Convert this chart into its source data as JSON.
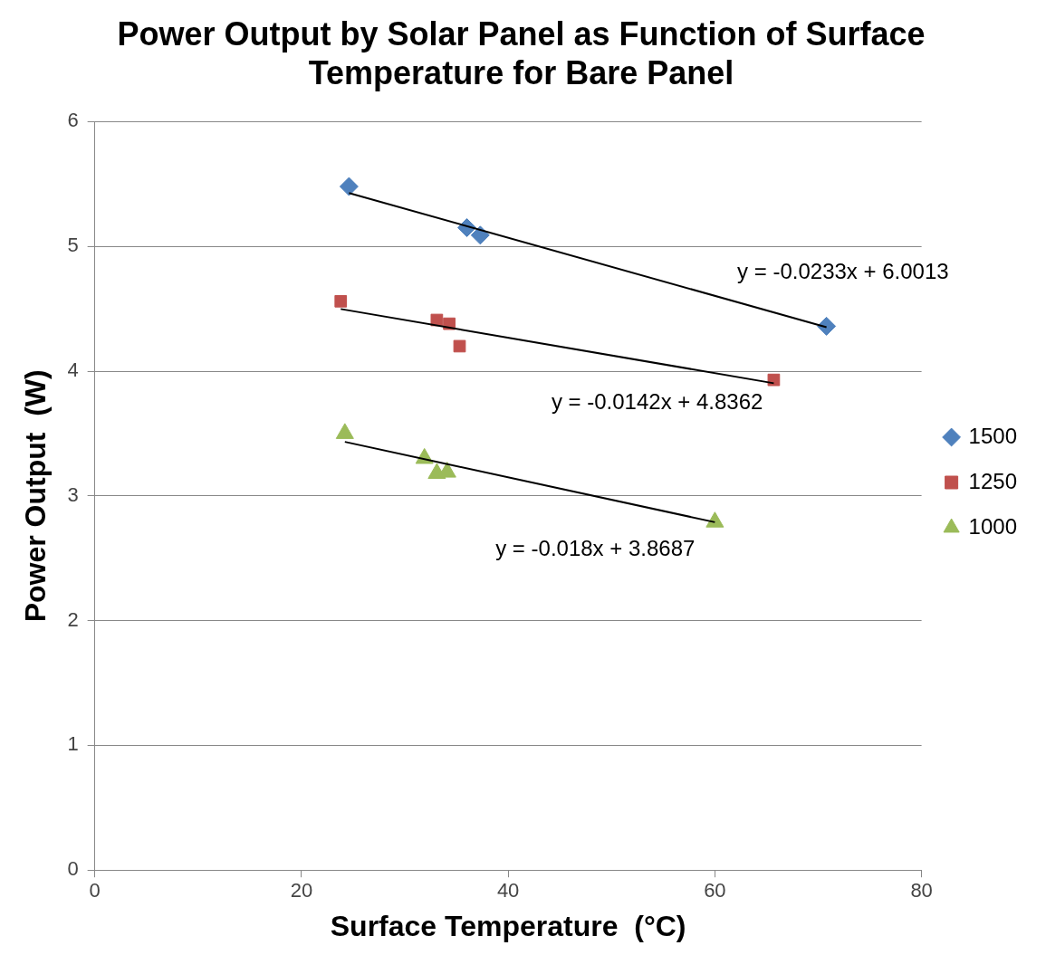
{
  "chart_data": {
    "type": "scatter",
    "title": "Power Output by Solar Panel as Function of Surface Temperature for Bare Panel",
    "xlabel": "Surface Temperature  (°C)",
    "ylabel": "Power Output  (W)",
    "xlim": [
      0,
      80
    ],
    "xticks": [
      0,
      20,
      40,
      60,
      80
    ],
    "ylim": [
      0,
      6
    ],
    "yticks": [
      0,
      1,
      2,
      3,
      4,
      5,
      6
    ],
    "grid": "y",
    "legend": "right",
    "series": [
      {
        "name": "1500",
        "color": "#4f81bd",
        "marker": "diamond",
        "x": [
          24.6,
          36.0,
          37.3,
          70.8
        ],
        "values": [
          5.48,
          5.15,
          5.09,
          4.36
        ]
      },
      {
        "name": "1250",
        "color": "#c0504d",
        "marker": "square",
        "x": [
          23.8,
          33.1,
          34.3,
          35.3,
          65.7
        ],
        "values": [
          4.56,
          4.41,
          4.38,
          4.2,
          3.93
        ]
      },
      {
        "name": "1000",
        "color": "#9bbb59",
        "marker": "triangle",
        "x": [
          24.2,
          31.9,
          33.1,
          34.1,
          60.0
        ],
        "values": [
          3.5,
          3.3,
          3.18,
          3.19,
          2.79
        ]
      },
      {
        "type": "line",
        "color": "#000000",
        "marker": "none",
        "x": [
          24.6,
          70.8
        ],
        "values": [
          5.428,
          4.352
        ]
      },
      {
        "type": "line",
        "color": "#000000",
        "marker": "none",
        "x": [
          23.8,
          65.7
        ],
        "values": [
          4.498,
          3.903
        ]
      },
      {
        "type": "line",
        "color": "#000000",
        "marker": "none",
        "x": [
          24.2,
          60.0
        ],
        "values": [
          3.433,
          2.789
        ]
      }
    ],
    "annotations": [
      "y = -0.0233x + 6.0013",
      "y = -0.0142x + 4.8362",
      "y = -0.018x + 3.8687"
    ]
  }
}
